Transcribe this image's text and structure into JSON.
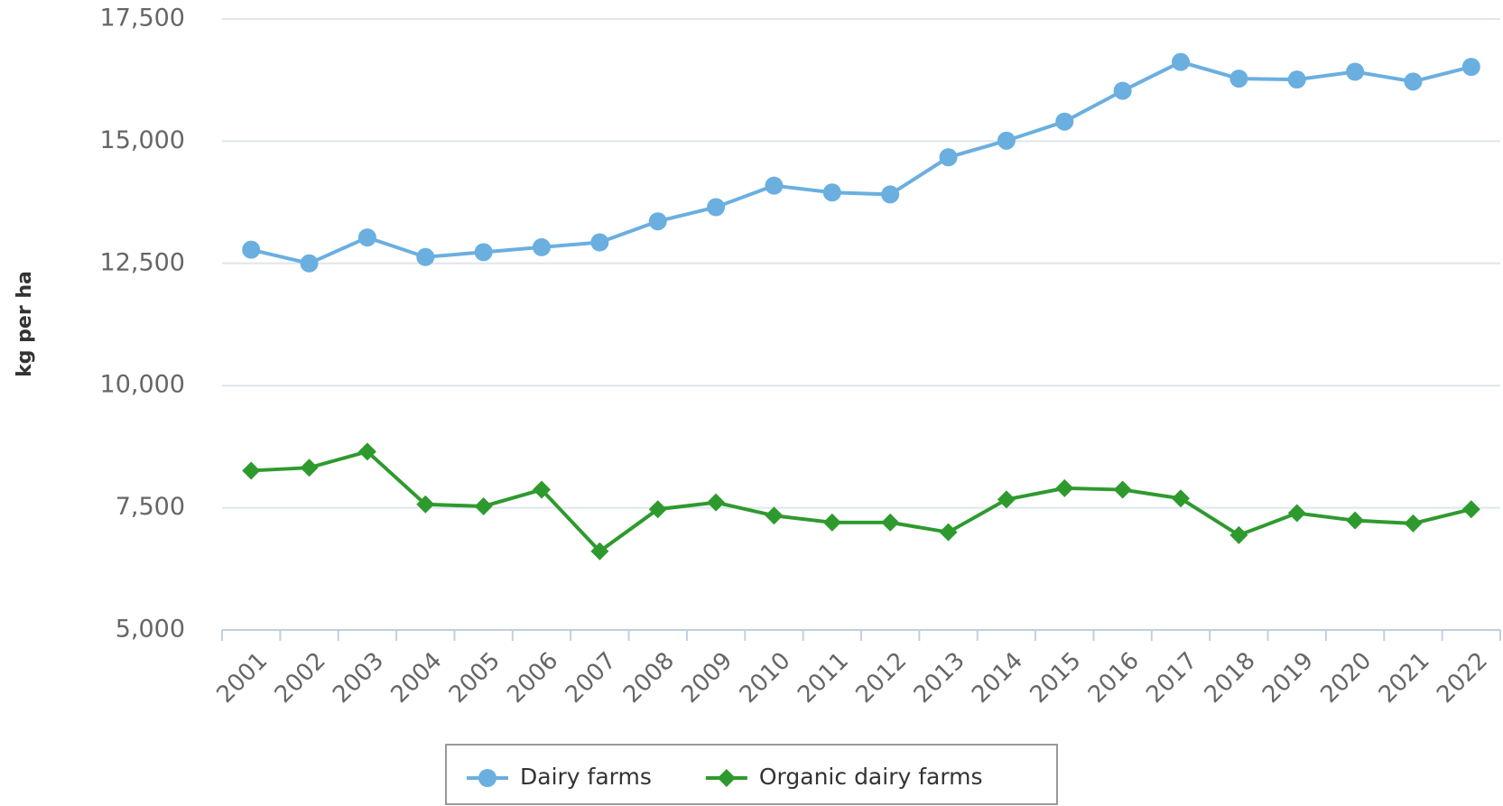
{
  "chart_data": {
    "type": "line",
    "y_label": "kg per ha",
    "categories": [
      "2001",
      "2002",
      "2003",
      "2004",
      "2005",
      "2006",
      "2007",
      "2008",
      "2009",
      "2010",
      "2011",
      "2012",
      "2013",
      "2014",
      "2015",
      "2016",
      "2017",
      "2018",
      "2019",
      "2020",
      "2021",
      "2022"
    ],
    "series": [
      {
        "name": "Dairy farms",
        "color": "#6aafe0",
        "marker": "circle",
        "values": [
          12780,
          12500,
          13030,
          12630,
          12730,
          12830,
          12930,
          13360,
          13650,
          14090,
          13950,
          13910,
          14670,
          15010,
          15400,
          16030,
          16620,
          16280,
          16260,
          16420,
          16220,
          16520
        ]
      },
      {
        "name": "Organic dairy farms",
        "color": "#2e9a2e",
        "marker": "diamond",
        "values": [
          8260,
          8320,
          8650,
          7570,
          7530,
          7870,
          6610,
          7470,
          7610,
          7340,
          7200,
          7200,
          7000,
          7670,
          7900,
          7870,
          7690,
          6940,
          7390,
          7240,
          7180,
          7470
        ]
      }
    ],
    "ylim": [
      5000,
      17500
    ],
    "yticks": [
      {
        "value": 5000,
        "label": "5,000"
      },
      {
        "value": 7500,
        "label": "7,500"
      },
      {
        "value": 10000,
        "label": "10,000"
      },
      {
        "value": 12500,
        "label": "12,500"
      },
      {
        "value": 15000,
        "label": "15,000"
      },
      {
        "value": 17500,
        "label": "17,500"
      }
    ],
    "grid": true,
    "legend": "bottom"
  }
}
